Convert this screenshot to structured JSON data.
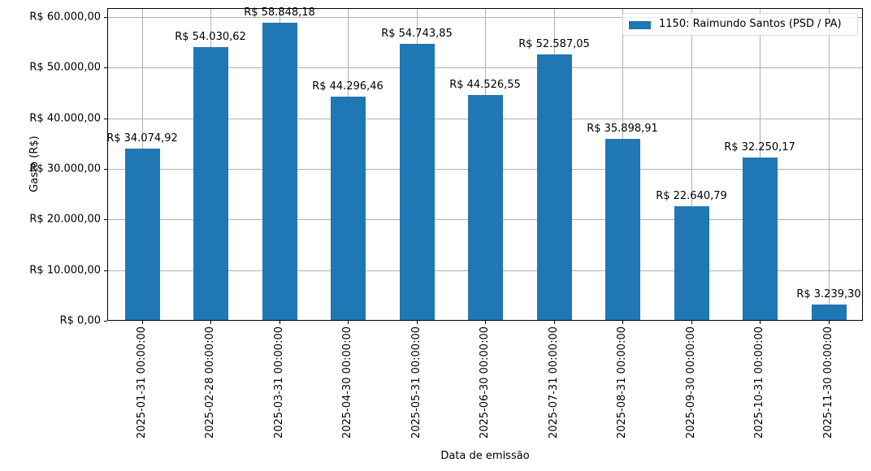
{
  "chart_data": {
    "type": "bar",
    "title": "",
    "xlabel": "Data de emissão",
    "ylabel": "Gasto (R$)",
    "ylim": [
      0,
      60000
    ],
    "grid": true,
    "legend_position": "upper right",
    "categories": [
      "2025-01-31 00:00:00",
      "2025-02-28 00:00:00",
      "2025-03-31 00:00:00",
      "2025-04-30 00:00:00",
      "2025-05-31 00:00:00",
      "2025-06-30 00:00:00",
      "2025-07-31 00:00:00",
      "2025-08-31 00:00:00",
      "2025-09-30 00:00:00",
      "2025-10-31 00:00:00",
      "2025-11-30 00:00:00"
    ],
    "series": [
      {
        "name": "1150: Raimundo Santos (PSD / PA)",
        "color": "#1f77b4",
        "values": [
          34074.92,
          54030.62,
          58848.18,
          44296.46,
          54743.85,
          44526.55,
          52587.05,
          35898.91,
          22640.79,
          32250.17,
          3239.3
        ],
        "labels": [
          "R$ 34.074,92",
          "R$ 54.030,62",
          "R$ 58.848,18",
          "R$ 44.296,46",
          "R$ 54.743,85",
          "R$ 44.526,55",
          "R$ 52.587,05",
          "R$ 35.898,91",
          "R$ 22.640,79",
          "R$ 32.250,17",
          "R$ 3.239,30"
        ]
      }
    ],
    "yticks": [
      {
        "value": 0,
        "label": "R$ 0,00"
      },
      {
        "value": 10000,
        "label": "R$ 10.000,00"
      },
      {
        "value": 20000,
        "label": "R$ 20.000,00"
      },
      {
        "value": 30000,
        "label": "R$ 30.000,00"
      },
      {
        "value": 40000,
        "label": "R$ 40.000,00"
      },
      {
        "value": 50000,
        "label": "R$ 50.000,00"
      },
      {
        "value": 60000,
        "label": "R$ 60.000,00"
      }
    ]
  },
  "legend": {
    "label": "1150: Raimundo Santos (PSD / PA)"
  }
}
